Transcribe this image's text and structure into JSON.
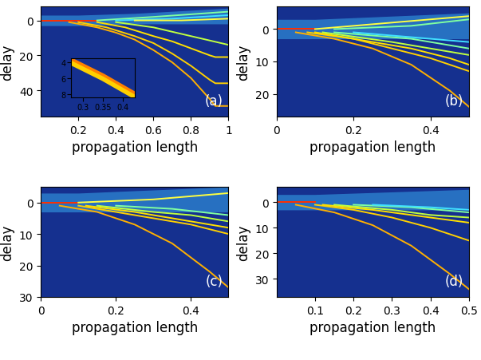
{
  "chart_data": [
    {
      "type": "line",
      "panel_label": "(a)",
      "x_label": "propagation length",
      "y_label": "delay",
      "xlim": [
        0,
        1
      ],
      "xticks": [
        0.2,
        0.4,
        0.6,
        0.8,
        1
      ],
      "ylim": [
        55,
        -8
      ],
      "yticks": [
        0,
        20,
        40
      ],
      "series": [
        {
          "type": "area",
          "color": "#3fbfff",
          "x": [
            0,
            0.2,
            0.5,
            1
          ],
          "values": [
            -3,
            -3,
            -4,
            -7
          ],
          "lower": [
            3,
            3,
            2,
            2
          ]
        },
        {
          "color": "#ff3000",
          "x": [
            0,
            0.15,
            0.3
          ],
          "values": [
            0,
            0,
            0
          ]
        },
        {
          "color": "#ffb000",
          "x": [
            0.15,
            0.3,
            0.4,
            0.5,
            0.6,
            0.7,
            0.8,
            0.9,
            0.93,
            1
          ],
          "values": [
            1,
            4,
            7,
            11,
            17,
            24,
            33,
            45,
            49,
            49
          ]
        },
        {
          "color": "#ffd000",
          "x": [
            0.2,
            0.35,
            0.5,
            0.6,
            0.7,
            0.8,
            0.9,
            0.93,
            1
          ],
          "values": [
            1,
            4,
            9,
            13,
            19,
            26,
            34,
            36,
            36
          ]
        },
        {
          "color": "#ffe000",
          "x": [
            0.3,
            0.45,
            0.6,
            0.7,
            0.8,
            0.9,
            0.93,
            1
          ],
          "values": [
            1,
            4,
            9,
            12,
            16,
            20,
            21,
            21
          ]
        },
        {
          "color": "#c0ff40",
          "x": [
            0.4,
            0.6,
            0.8,
            1
          ],
          "values": [
            1,
            4,
            9,
            14
          ]
        },
        {
          "color": "#80ffa0",
          "x": [
            0.3,
            0.6,
            1
          ],
          "values": [
            0,
            -2,
            -5
          ]
        },
        {
          "color": "#40e0ff",
          "x": [
            0.4,
            0.7,
            1
          ],
          "values": [
            0,
            -1,
            -3
          ]
        },
        {
          "color": "#ffff40",
          "x": [
            0.5,
            0.75,
            1
          ],
          "values": [
            0,
            0,
            -1
          ]
        }
      ],
      "inset": {
        "xlim": [
          0.27,
          0.43
        ],
        "xticks": [
          0.3,
          0.35,
          0.4
        ],
        "ylim": [
          8.5,
          3.5
        ],
        "yticks": [
          4,
          6,
          8
        ],
        "series": [
          {
            "color": "#ff8000",
            "x": [
              0.27,
              0.35,
              0.43
            ],
            "values": [
              3.7,
              5.7,
              8.0
            ]
          },
          {
            "color": "#ffd000",
            "x": [
              0.27,
              0.35,
              0.43
            ],
            "values": [
              4.1,
              6.1,
              8.4
            ]
          }
        ]
      }
    },
    {
      "type": "line",
      "panel_label": "(b)",
      "x_label": "propagation length",
      "y_label": "delay",
      "xlim": [
        0,
        0.5
      ],
      "xticks": [
        0,
        0.2,
        0.4
      ],
      "ylim": [
        27,
        -7
      ],
      "yticks": [
        0,
        10,
        20
      ],
      "series": [
        {
          "type": "area",
          "color": "#3fbfff",
          "x": [
            0,
            0.1,
            0.3,
            0.5
          ],
          "values": [
            -3,
            -3,
            -4,
            -5
          ],
          "lower": [
            3,
            3,
            3,
            3
          ]
        },
        {
          "color": "#ff3000",
          "x": [
            0,
            0.05,
            0.1
          ],
          "values": [
            0,
            0,
            0
          ]
        },
        {
          "color": "#ffb000",
          "x": [
            0.05,
            0.15,
            0.25,
            0.35,
            0.45,
            0.5
          ],
          "values": [
            1,
            3,
            6,
            11,
            19,
            24
          ]
        },
        {
          "color": "#ffd000",
          "x": [
            0.08,
            0.2,
            0.3,
            0.4,
            0.5
          ],
          "values": [
            1,
            3,
            6,
            9,
            13
          ]
        },
        {
          "color": "#ffe000",
          "x": [
            0.1,
            0.25,
            0.35,
            0.45,
            0.5
          ],
          "values": [
            1,
            4,
            6,
            9,
            11
          ]
        },
        {
          "color": "#c0ff40",
          "x": [
            0.12,
            0.3,
            0.4,
            0.5
          ],
          "values": [
            1,
            4,
            6,
            8
          ]
        },
        {
          "color": "#80ffa0",
          "x": [
            0.15,
            0.35,
            0.5
          ],
          "values": [
            1,
            3,
            6
          ]
        },
        {
          "color": "#40e0ff",
          "x": [
            0.2,
            0.4,
            0.5
          ],
          "values": [
            1,
            3,
            4
          ]
        },
        {
          "color": "#ffff40",
          "x": [
            0.1,
            0.3,
            0.5
          ],
          "values": [
            0,
            -2,
            -4
          ]
        },
        {
          "color": "#80ffa0",
          "x": [
            0.15,
            0.35,
            0.5
          ],
          "values": [
            0,
            -1,
            -3
          ]
        }
      ]
    },
    {
      "type": "line",
      "panel_label": "(c)",
      "x_label": "propagation length",
      "y_label": "delay",
      "xlim": [
        0,
        0.5
      ],
      "xticks": [
        0,
        0.2,
        0.4
      ],
      "ylim": [
        30,
        -5
      ],
      "yticks": [
        0,
        10,
        20,
        30
      ],
      "series": [
        {
          "type": "area",
          "color": "#3fbfff",
          "x": [
            0,
            0.1,
            0.3,
            0.5
          ],
          "values": [
            -3,
            -3,
            -4,
            -5
          ],
          "lower": [
            3,
            3,
            3,
            3
          ]
        },
        {
          "color": "#ff3000",
          "x": [
            0,
            0.05,
            0.1
          ],
          "values": [
            0,
            0,
            0
          ]
        },
        {
          "color": "#ffb000",
          "x": [
            0.05,
            0.15,
            0.25,
            0.35,
            0.45,
            0.5
          ],
          "values": [
            1,
            3,
            7,
            13,
            22,
            27
          ]
        },
        {
          "color": "#ffd000",
          "x": [
            0.1,
            0.2,
            0.3,
            0.4,
            0.5
          ],
          "values": [
            1,
            3,
            5,
            7,
            10
          ]
        },
        {
          "color": "#ffe000",
          "x": [
            0.12,
            0.25,
            0.35,
            0.45,
            0.5
          ],
          "values": [
            1,
            3,
            5,
            7,
            8
          ]
        },
        {
          "color": "#c0ff40",
          "x": [
            0.15,
            0.3,
            0.4,
            0.5
          ],
          "values": [
            1,
            3,
            4,
            6
          ]
        },
        {
          "color": "#80ffa0",
          "x": [
            0.2,
            0.35,
            0.5
          ],
          "values": [
            1,
            2,
            4
          ]
        },
        {
          "color": "#ffff40",
          "x": [
            0.1,
            0.3,
            0.5
          ],
          "values": [
            0,
            -1,
            -3
          ]
        }
      ]
    },
    {
      "type": "line",
      "panel_label": "(d)",
      "x_label": "propagation length",
      "y_label": "delay",
      "xlim": [
        0,
        0.5
      ],
      "xticks": [
        0.1,
        0.2,
        0.3,
        0.4,
        0.5
      ],
      "ylim": [
        37,
        -6
      ],
      "yticks": [
        0,
        10,
        20,
        30
      ],
      "series": [
        {
          "type": "area",
          "color": "#3fbfff",
          "x": [
            0,
            0.1,
            0.3,
            0.5
          ],
          "values": [
            -3,
            -3,
            -4,
            -5
          ],
          "lower": [
            3,
            3,
            3,
            3
          ]
        },
        {
          "color": "#ff3000",
          "x": [
            0,
            0.05,
            0.1
          ],
          "values": [
            0,
            0,
            0
          ]
        },
        {
          "color": "#ffb000",
          "x": [
            0.05,
            0.15,
            0.25,
            0.35,
            0.45,
            0.5
          ],
          "values": [
            1,
            4,
            9,
            17,
            28,
            34
          ]
        },
        {
          "color": "#ffd000",
          "x": [
            0.1,
            0.2,
            0.3,
            0.4,
            0.5
          ],
          "values": [
            1,
            3,
            6,
            10,
            15
          ]
        },
        {
          "color": "#ffe000",
          "x": [
            0.12,
            0.25,
            0.35,
            0.45,
            0.5
          ],
          "values": [
            1,
            3,
            5,
            7,
            8
          ]
        },
        {
          "color": "#c0ff40",
          "x": [
            0.15,
            0.3,
            0.4,
            0.5
          ],
          "values": [
            1,
            3,
            5,
            6
          ]
        },
        {
          "color": "#80ffa0",
          "x": [
            0.2,
            0.35,
            0.5
          ],
          "values": [
            1,
            2,
            4
          ]
        },
        {
          "color": "#40e0ff",
          "x": [
            0.25,
            0.4,
            0.5
          ],
          "values": [
            1,
            2,
            3
          ]
        }
      ]
    }
  ]
}
